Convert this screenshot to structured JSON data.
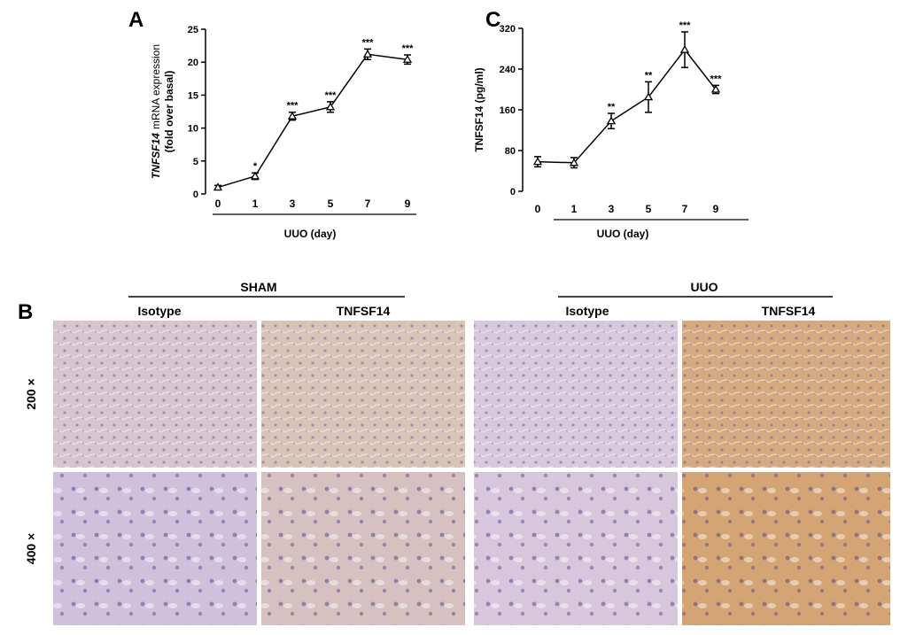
{
  "chart_data": [
    {
      "type": "line",
      "panel": "A",
      "ylabel_italic": "TNFSF14",
      "ylabel": "mRNA expression",
      "ylabel2": "(fold over basal)",
      "xlabel": "UUO (day)",
      "categories": [
        "0",
        "1",
        "3",
        "5",
        "7",
        "9"
      ],
      "values": [
        1.0,
        2.7,
        11.8,
        13.2,
        21.2,
        20.4
      ],
      "errors": [
        0.3,
        0.5,
        0.6,
        0.8,
        0.8,
        0.7
      ],
      "annotations": [
        null,
        "*",
        "***",
        "***",
        "***",
        "***"
      ],
      "color": "#000000",
      "ylim": [
        0,
        25
      ],
      "yticks": [
        0,
        5,
        10,
        15,
        20,
        25
      ]
    },
    {
      "type": "line",
      "panel": "C",
      "ylabel": "TNFSF14 (pg/ml)",
      "xlabel": "UUO (day)",
      "categories": [
        "0",
        "1",
        "3",
        "5",
        "7",
        "9"
      ],
      "values": [
        58,
        56,
        138,
        185,
        278,
        200
      ],
      "errors": [
        10,
        10,
        15,
        30,
        35,
        8
      ],
      "annotations": [
        null,
        null,
        "**",
        "**",
        "***",
        "***"
      ],
      "color": "#000000",
      "ylim": [
        0,
        320
      ],
      "yticks": [
        0,
        80,
        160,
        240,
        320
      ]
    }
  ],
  "panel_b": {
    "label": "B",
    "groups": [
      "SHAM",
      "UUO"
    ],
    "columns": [
      "Isotype",
      "TNFSF14",
      "Isotype",
      "TNFSF14"
    ],
    "rows": [
      "200 ×",
      "400 ×"
    ]
  }
}
